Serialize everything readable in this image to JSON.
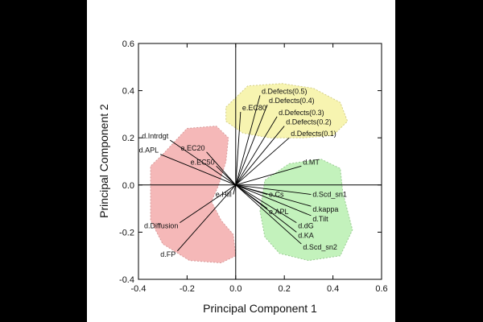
{
  "chart_data": {
    "type": "scatter",
    "subtype": "pca-biplot-loadings",
    "title": "",
    "xlabel": "Principal Component 1",
    "ylabel": "Principal Component 2",
    "xlim": [
      -0.4,
      0.6
    ],
    "ylim": [
      -0.4,
      0.6
    ],
    "xticks": [
      "-0.4",
      "-0.2",
      "0.0",
      "0.2",
      "0.4",
      "0.6"
    ],
    "yticks": [
      "-0.4",
      "-0.2",
      "0.0",
      "0.2",
      "0.4",
      "0.6"
    ],
    "grid": false,
    "zero_lines": true,
    "vectors": [
      {
        "label": "d.Defects(0.5)",
        "x": 0.1,
        "y": 0.38
      },
      {
        "label": "d.Defects(0.4)",
        "x": 0.13,
        "y": 0.34
      },
      {
        "label": "d.Defects(0.3)",
        "x": 0.17,
        "y": 0.29
      },
      {
        "label": "d.Defects(0.2)",
        "x": 0.2,
        "y": 0.25
      },
      {
        "label": "d.Defects(0.1)",
        "x": 0.22,
        "y": 0.2
      },
      {
        "label": "e.EC80",
        "x": 0.02,
        "y": 0.31
      },
      {
        "label": "d.Intrdgt",
        "x": -0.27,
        "y": 0.19
      },
      {
        "label": "d.APL",
        "x": -0.31,
        "y": 0.13
      },
      {
        "label": "e.EC20",
        "x": -0.12,
        "y": 0.14
      },
      {
        "label": "e.EC50",
        "x": -0.08,
        "y": 0.08
      },
      {
        "label": "d.MT",
        "x": 0.27,
        "y": 0.08
      },
      {
        "label": "e.Hill",
        "x": -0.01,
        "y": -0.04
      },
      {
        "label": "e.Cs",
        "x": 0.13,
        "y": -0.04
      },
      {
        "label": "d.Scd_sn1",
        "x": 0.31,
        "y": -0.04
      },
      {
        "label": "d.kappa",
        "x": 0.31,
        "y": -0.09
      },
      {
        "label": "e.APL",
        "x": 0.13,
        "y": -0.1
      },
      {
        "label": "d.Tilt",
        "x": 0.31,
        "y": -0.13
      },
      {
        "label": "d.dG",
        "x": 0.25,
        "y": -0.16
      },
      {
        "label": "d.KA",
        "x": 0.25,
        "y": -0.2
      },
      {
        "label": "d.Scd_sn2",
        "x": 0.27,
        "y": -0.25
      },
      {
        "label": "d.Diffusion",
        "x": -0.23,
        "y": -0.16
      },
      {
        "label": "d.FP",
        "x": -0.24,
        "y": -0.28
      }
    ],
    "clusters": [
      {
        "color": "#f5b8b8",
        "stroke": "#d99a9a",
        "outline": [
          [
            -0.3,
            0.13
          ],
          [
            -0.2,
            0.24
          ],
          [
            -0.08,
            0.25
          ],
          [
            -0.03,
            0.2
          ],
          [
            -0.04,
            0.1
          ],
          [
            -0.07,
            0.0
          ],
          [
            -0.1,
            -0.07
          ],
          [
            -0.06,
            -0.15
          ],
          [
            -0.01,
            -0.21
          ],
          [
            0.0,
            -0.3
          ],
          [
            -0.06,
            -0.33
          ],
          [
            -0.19,
            -0.32
          ],
          [
            -0.3,
            -0.25
          ],
          [
            -0.35,
            -0.15
          ],
          [
            -0.35,
            0.0
          ],
          [
            -0.35,
            0.08
          ]
        ]
      },
      {
        "color": "#f7f4b0",
        "stroke": "#d4cf88",
        "outline": [
          [
            -0.04,
            0.33
          ],
          [
            0.05,
            0.42
          ],
          [
            0.19,
            0.43
          ],
          [
            0.32,
            0.41
          ],
          [
            0.43,
            0.35
          ],
          [
            0.46,
            0.27
          ],
          [
            0.4,
            0.21
          ],
          [
            0.28,
            0.2
          ],
          [
            0.14,
            0.2
          ],
          [
            0.03,
            0.22
          ],
          [
            -0.04,
            0.27
          ]
        ]
      },
      {
        "color": "#c3f2bc",
        "stroke": "#99cc92",
        "outline": [
          [
            0.22,
            0.09
          ],
          [
            0.35,
            0.11
          ],
          [
            0.43,
            0.07
          ],
          [
            0.44,
            -0.03
          ],
          [
            0.48,
            -0.19
          ],
          [
            0.43,
            -0.3
          ],
          [
            0.3,
            -0.32
          ],
          [
            0.18,
            -0.29
          ],
          [
            0.12,
            -0.22
          ],
          [
            0.1,
            -0.11
          ],
          [
            0.12,
            0.02
          ]
        ]
      }
    ],
    "colors": {
      "vector": "#000000",
      "axis": "#000000"
    }
  }
}
